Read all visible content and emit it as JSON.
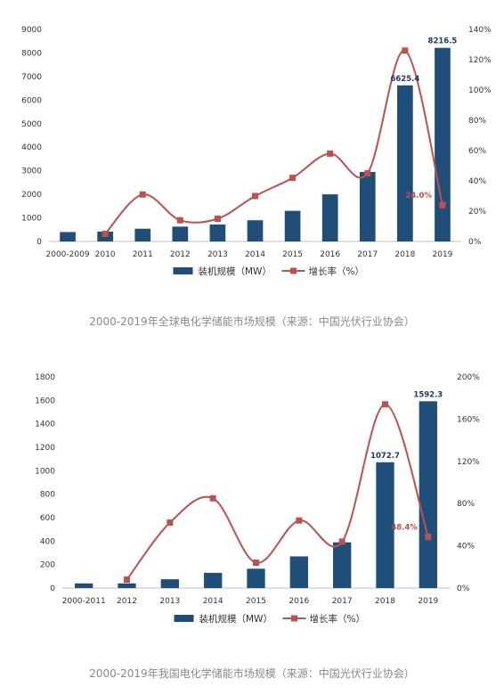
{
  "charts": [
    {
      "caption": "2000-2019年全球电化学储能市场规模（来源：中国光伏行业协会）",
      "legend_bar": "装机规模（MW）",
      "legend_line": "增长率（%）",
      "colors": {
        "bar": "#1f4e79",
        "line": "#c0504d"
      }
    },
    {
      "caption": "2000-2019年我国电化学储能市场规模（来源：中国光伏行业协会）",
      "legend_bar": "装机规模（MW）",
      "legend_line": "增长率（%）",
      "colors": {
        "bar": "#1f4e79",
        "line": "#c0504d"
      }
    }
  ],
  "chart_data": [
    {
      "type": "bar",
      "categories": [
        "2000-2009",
        "2010",
        "2011",
        "2012",
        "2013",
        "2014",
        "2015",
        "2016",
        "2017",
        "2018",
        "2019"
      ],
      "series": [
        {
          "name": "装机规模（MW）",
          "type": "bar",
          "axis": "left",
          "values": [
            400,
            420,
            540,
            630,
            720,
            900,
            1300,
            2000,
            2950,
            6625.4,
            8216.5
          ]
        },
        {
          "name": "增长率（%）",
          "type": "line",
          "axis": "right",
          "values": [
            null,
            5,
            31,
            14,
            15,
            30,
            42,
            58,
            45,
            126,
            24.0
          ]
        }
      ],
      "data_labels": [
        {
          "category": "2018",
          "series": "装机规模（MW）",
          "text": "6625.4"
        },
        {
          "category": "2019",
          "series": "装机规模（MW）",
          "text": "8216.5"
        },
        {
          "category": "2019",
          "series": "增长率（%）",
          "text": "24.0%"
        }
      ],
      "ylim": [
        0,
        9000
      ],
      "yticks": [
        0,
        1000,
        2000,
        3000,
        4000,
        5000,
        6000,
        7000,
        8000,
        9000
      ],
      "y2lim": [
        0,
        140
      ],
      "y2ticks": [
        "0%",
        "20%",
        "40%",
        "60%",
        "80%",
        "100%",
        "120%",
        "140%"
      ],
      "legend_position": "bottom"
    },
    {
      "type": "bar",
      "categories": [
        "2000-2011",
        "2012",
        "2013",
        "2014",
        "2015",
        "2016",
        "2017",
        "2018",
        "2019"
      ],
      "series": [
        {
          "name": "装机规模（MW）",
          "type": "bar",
          "axis": "left",
          "values": [
            40,
            40,
            75,
            130,
            165,
            270,
            390,
            1072.7,
            1592.3
          ]
        },
        {
          "name": "增长率（%）",
          "type": "line",
          "axis": "right",
          "values": [
            null,
            8,
            62,
            85,
            24,
            64,
            44,
            174,
            48.4
          ]
        }
      ],
      "data_labels": [
        {
          "category": "2018",
          "series": "装机规模（MW）",
          "text": "1072.7"
        },
        {
          "category": "2019",
          "series": "装机规模（MW）",
          "text": "1592.3"
        },
        {
          "category": "2019",
          "series": "增长率（%）",
          "text": "48.4%"
        }
      ],
      "ylim": [
        0,
        1800
      ],
      "yticks": [
        0,
        200,
        400,
        600,
        800,
        1000,
        1200,
        1400,
        1600,
        1800
      ],
      "y2lim": [
        0,
        200
      ],
      "y2ticks": [
        "0%",
        "40%",
        "80%",
        "120%",
        "160%",
        "200%"
      ],
      "legend_position": "bottom"
    }
  ]
}
